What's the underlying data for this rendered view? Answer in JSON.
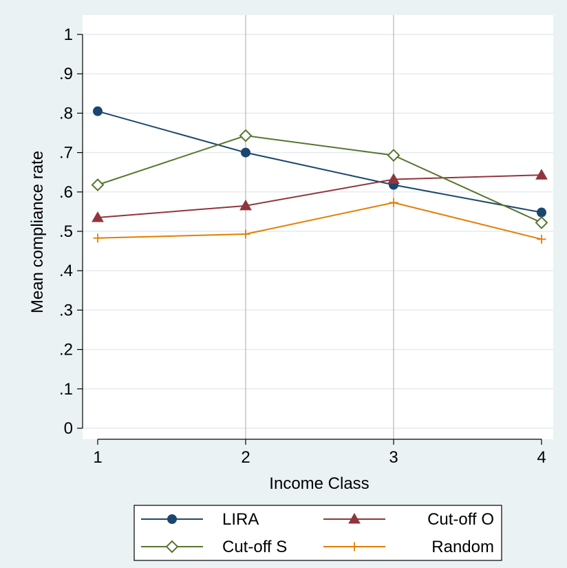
{
  "chart_data": {
    "type": "line",
    "title": "",
    "xlabel": "Income Class",
    "ylabel": "Mean compliance rate",
    "x": [
      1,
      2,
      3,
      4
    ],
    "x_tick_labels": [
      "1",
      "2",
      "3",
      "4"
    ],
    "ylim": [
      0,
      1
    ],
    "y_ticks": [
      0,
      0.1,
      0.2,
      0.3,
      0.4,
      0.5,
      0.6,
      0.7,
      0.8,
      0.9,
      1
    ],
    "y_tick_labels": [
      "0",
      ".1",
      ".2",
      ".3",
      ".4",
      ".5",
      ".6",
      ".7",
      ".8",
      ".9",
      "1"
    ],
    "grid": {
      "horizontal": true,
      "vertical": true
    },
    "legend_position": "bottom",
    "series": [
      {
        "name": "LIRA",
        "values": [
          0.805,
          0.7,
          0.618,
          0.548
        ],
        "color": "#1a476f",
        "marker": "circle"
      },
      {
        "name": "Cut-off O",
        "values": [
          0.535,
          0.565,
          0.632,
          0.643
        ],
        "color": "#90353b",
        "marker": "triangle"
      },
      {
        "name": "Cut-off S",
        "values": [
          0.618,
          0.743,
          0.693,
          0.522
        ],
        "color": "#55752f",
        "marker": "diamond-hollow"
      },
      {
        "name": "Random",
        "values": [
          0.483,
          0.493,
          0.573,
          0.48
        ],
        "color": "#e37e00",
        "marker": "plus"
      }
    ]
  }
}
